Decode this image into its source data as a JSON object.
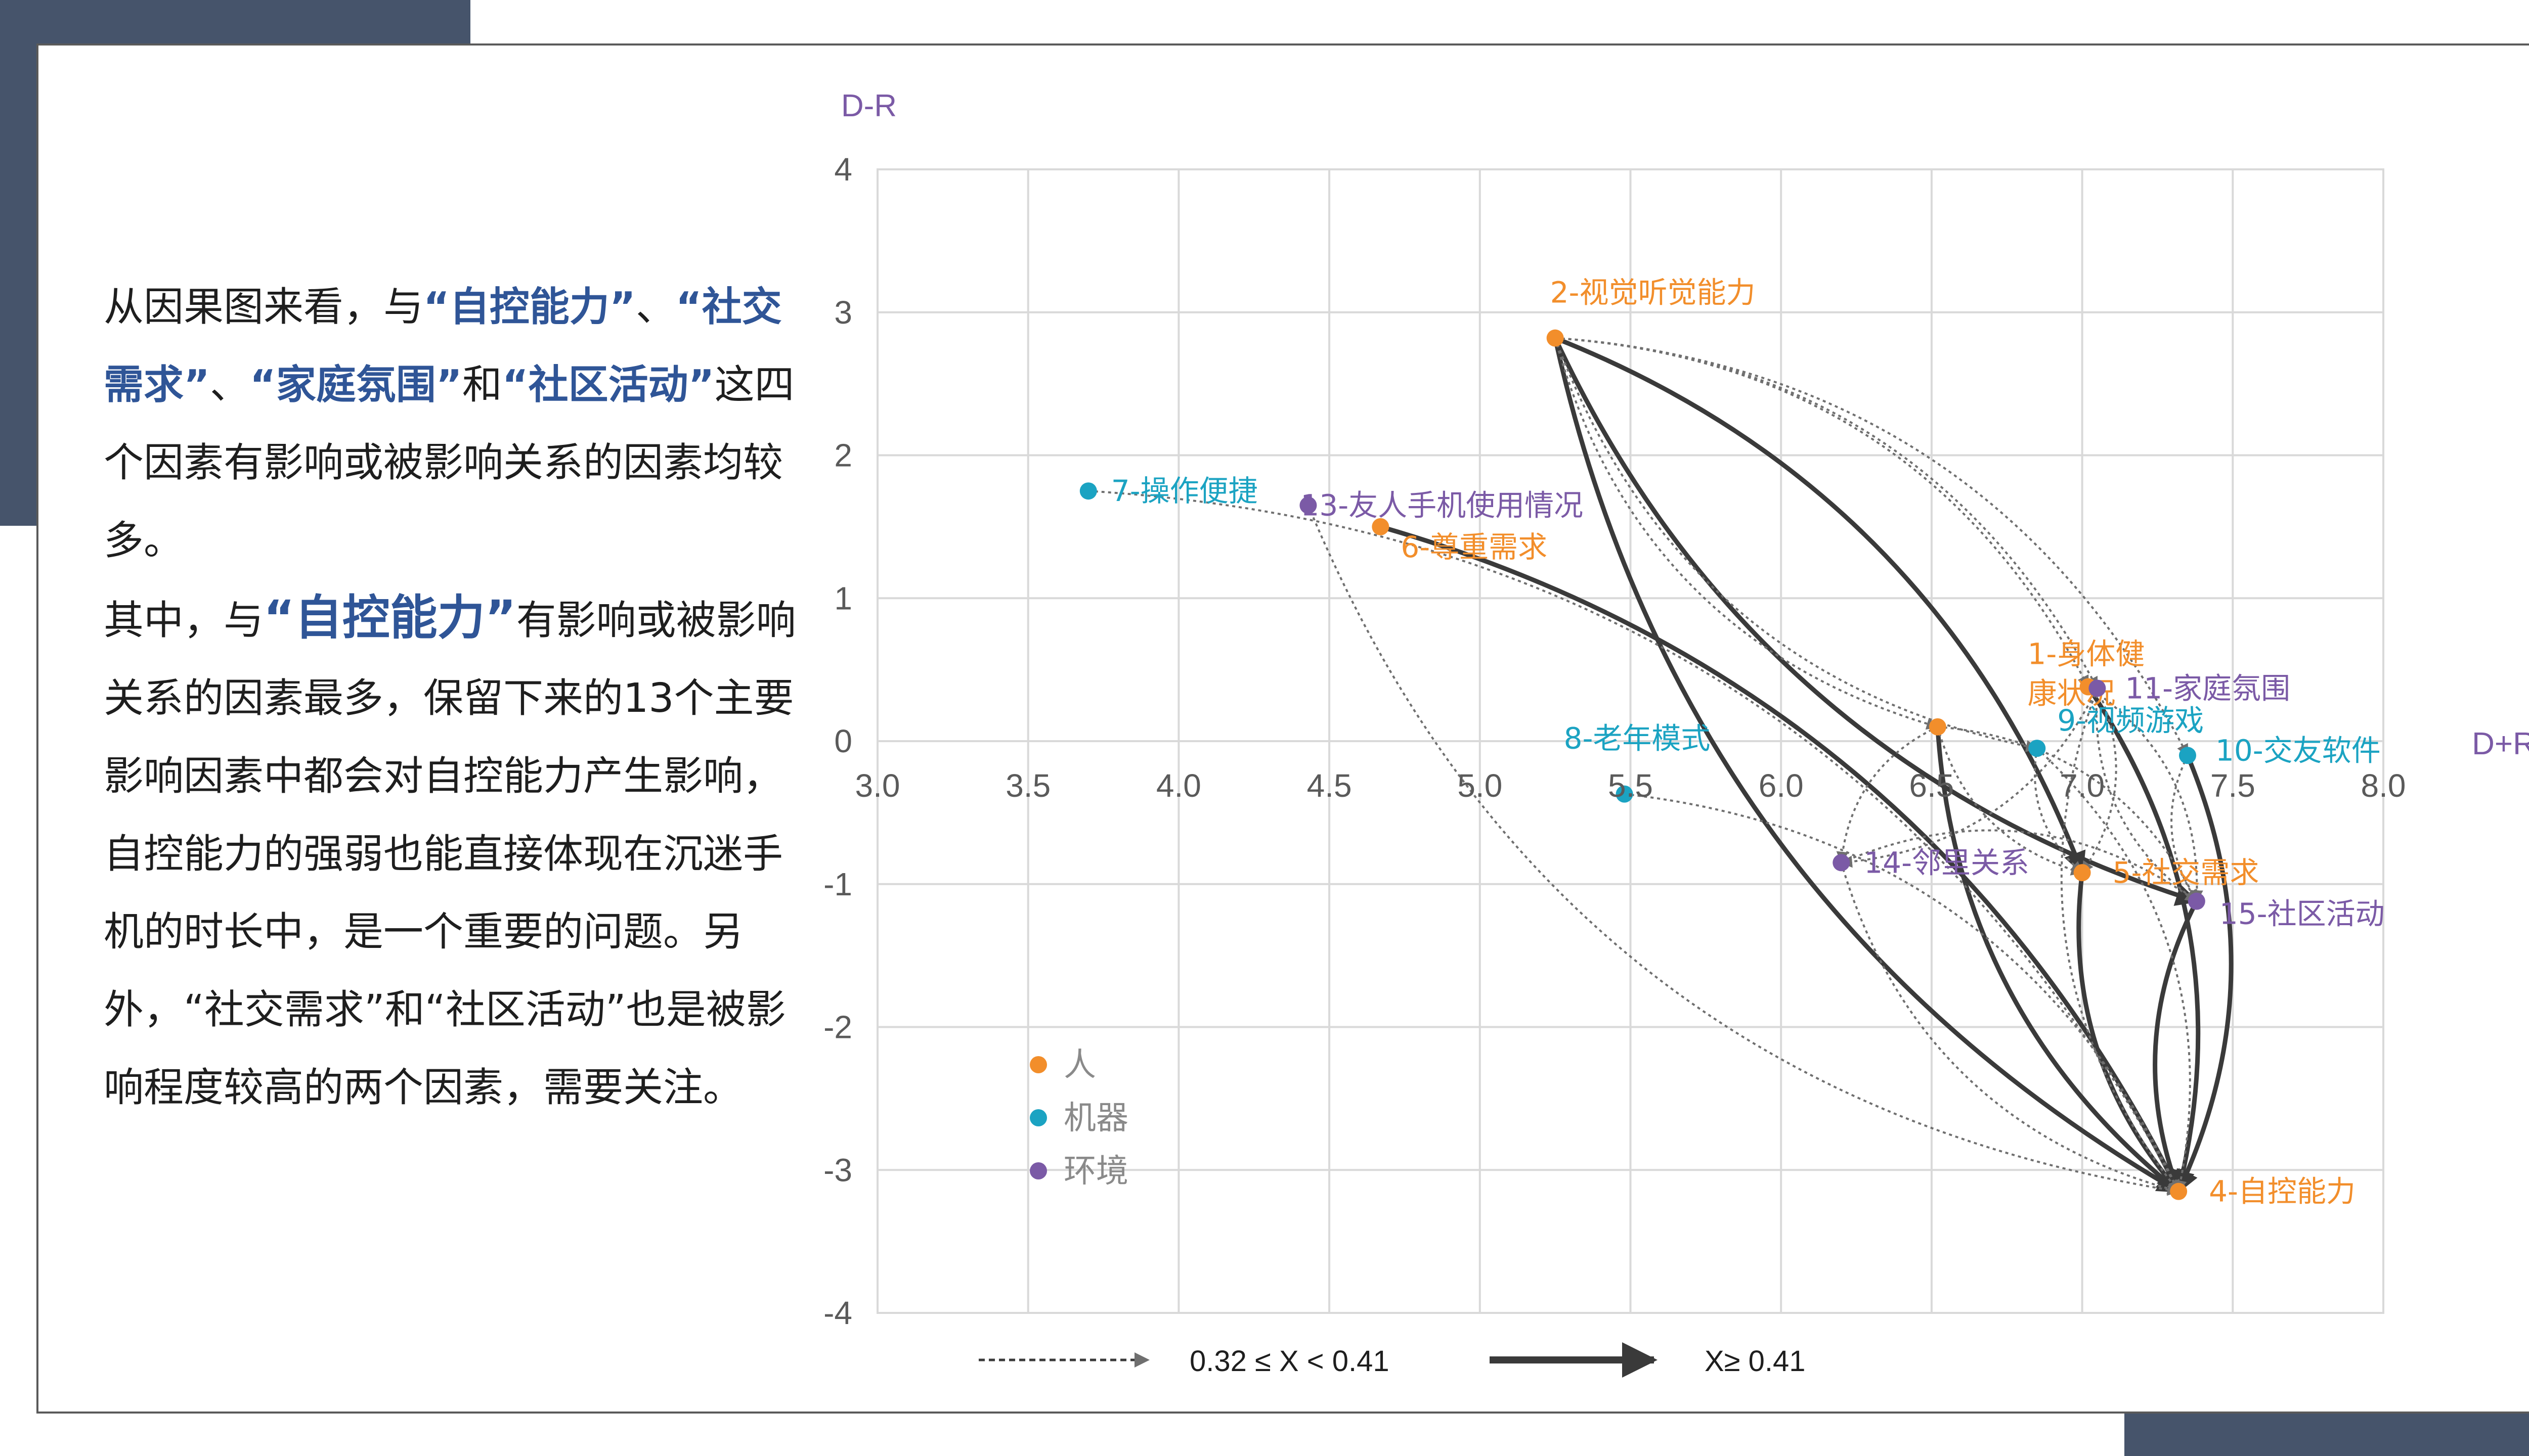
{
  "description": {
    "p1": {
      "t1": "从因果图来看，与",
      "h1": "“自控能力”",
      "t2": "、",
      "h2": "“社交需求”",
      "t3": "、",
      "h3": "“家庭氛围”",
      "t4": "和",
      "h4": "“社区活动”",
      "t5": "这四个因素有影响或被影响关系的因素均较多。"
    },
    "p2": {
      "t1": "其中，与",
      "h1": "“自控能力”",
      "t2": "有影响或被影响关系的因素最多，保留下来的13个主要影响因素中都会对自控能力产生影响，自控能力的强弱也能直接体现在沉迷手机的时长中，是一个重要的问题。另外，“社交需求”和“社区活动”也是被影响程度较高的两个因素，需要关注。"
    }
  },
  "colors": {
    "person": "#f28e2b",
    "machine": "#1ba3c2",
    "environment": "#7b5aa6",
    "strong_edge": "#3a3a3a",
    "weak_edge": "#6f6f6f",
    "grid": "#d9d9d9",
    "axis_text": "#5a5a5a",
    "highlight": "#2f5597",
    "deco": "#46546b"
  },
  "chart_data": {
    "type": "scatter",
    "x_axis_label": "D+R",
    "y_axis_label": "D-R",
    "xlim": [
      3.0,
      8.0
    ],
    "ylim": [
      -4,
      4
    ],
    "x_ticks": [
      "3.0",
      "3.5",
      "4.0",
      "4.5",
      "5.0",
      "5.5",
      "6.0",
      "6.5",
      "7.0",
      "7.5",
      "8.0"
    ],
    "y_ticks": [
      "4",
      "3",
      "2",
      "1",
      "0",
      "-1",
      "-2",
      "-3",
      "-4"
    ],
    "grid": true,
    "legend": {
      "position": "bottom-left",
      "items": [
        {
          "name": "人",
          "color_key": "person"
        },
        {
          "name": "机器",
          "color_key": "machine"
        },
        {
          "name": "环境",
          "color_key": "environment"
        }
      ]
    },
    "edge_legend": {
      "weak": "0.32 ≤ X < 0.41",
      "strong": "X≥ 0.41"
    },
    "nodes": [
      {
        "id": "1",
        "label": "1-身体健康状况",
        "label_line1": "1-身体健",
        "label_line2": "康状况",
        "group": "person",
        "x": 7.02,
        "y": 0.38
      },
      {
        "id": "2",
        "label": "2-视觉听觉能力",
        "group": "person",
        "x": 5.25,
        "y": 2.82
      },
      {
        "id": "4",
        "label": "4-自控能力",
        "group": "person",
        "x": 7.32,
        "y": -3.15
      },
      {
        "id": "5",
        "label": "5-社交需求",
        "group": "person",
        "x": 7.0,
        "y": -0.92
      },
      {
        "id": "6",
        "label": "6-尊重需求",
        "group": "person",
        "x": 4.67,
        "y": 1.5
      },
      {
        "id": "7",
        "label": "7-操作便捷",
        "group": "machine",
        "x": 3.7,
        "y": 1.75
      },
      {
        "id": "8",
        "label": "8-老年模式",
        "group": "machine",
        "x": 5.48,
        "y": -0.37
      },
      {
        "id": "9",
        "label": "9-视频游戏",
        "group": "machine",
        "x": 6.85,
        "y": -0.05
      },
      {
        "id": "10",
        "label": "10-交友软件",
        "group": "machine",
        "x": 7.35,
        "y": -0.1
      },
      {
        "id": "11",
        "label": "11-家庭氛围",
        "group": "environment",
        "x": 7.05,
        "y": 0.37
      },
      {
        "id": "12",
        "label": "",
        "group": "person",
        "x": 6.52,
        "y": 0.1
      },
      {
        "id": "13",
        "label": "13-友人手机使用情况",
        "group": "environment",
        "x": 4.43,
        "y": 1.65
      },
      {
        "id": "14",
        "label": "14-邻里关系",
        "group": "environment",
        "x": 6.2,
        "y": -0.85
      },
      {
        "id": "15",
        "label": "15-社区活动",
        "group": "environment",
        "x": 7.38,
        "y": -1.12
      }
    ],
    "edges": [
      {
        "from": "2",
        "to": "4",
        "strength": "strong"
      },
      {
        "from": "2",
        "to": "5",
        "strength": "strong"
      },
      {
        "from": "2",
        "to": "15",
        "strength": "strong"
      },
      {
        "from": "6",
        "to": "4",
        "strength": "strong"
      },
      {
        "from": "12",
        "to": "4",
        "strength": "strong"
      },
      {
        "from": "1",
        "to": "4",
        "strength": "strong"
      },
      {
        "from": "5",
        "to": "4",
        "strength": "strong"
      },
      {
        "from": "10",
        "to": "4",
        "strength": "strong"
      },
      {
        "from": "15",
        "to": "4",
        "strength": "strong"
      },
      {
        "from": "7",
        "to": "4",
        "strength": "weak"
      },
      {
        "from": "13",
        "to": "4",
        "strength": "weak"
      },
      {
        "from": "8",
        "to": "4",
        "strength": "weak"
      },
      {
        "from": "14",
        "to": "4",
        "strength": "weak"
      },
      {
        "from": "9",
        "to": "4",
        "strength": "weak"
      },
      {
        "from": "11",
        "to": "4",
        "strength": "weak"
      },
      {
        "from": "2",
        "to": "10",
        "strength": "weak"
      },
      {
        "from": "2",
        "to": "9",
        "strength": "weak"
      },
      {
        "from": "2",
        "to": "1",
        "strength": "weak"
      },
      {
        "from": "2",
        "to": "12",
        "strength": "weak"
      },
      {
        "from": "2",
        "to": "11",
        "strength": "weak"
      },
      {
        "from": "12",
        "to": "14",
        "strength": "weak"
      },
      {
        "from": "12",
        "to": "15",
        "strength": "weak"
      },
      {
        "from": "12",
        "to": "5",
        "strength": "weak"
      },
      {
        "from": "11",
        "to": "5",
        "strength": "weak"
      },
      {
        "from": "11",
        "to": "15",
        "strength": "weak"
      },
      {
        "from": "11",
        "to": "14",
        "strength": "weak"
      },
      {
        "from": "9",
        "to": "5",
        "strength": "weak"
      },
      {
        "from": "1",
        "to": "15",
        "strength": "weak"
      },
      {
        "from": "10",
        "to": "15",
        "strength": "weak"
      },
      {
        "from": "14",
        "to": "15",
        "strength": "weak"
      }
    ]
  }
}
